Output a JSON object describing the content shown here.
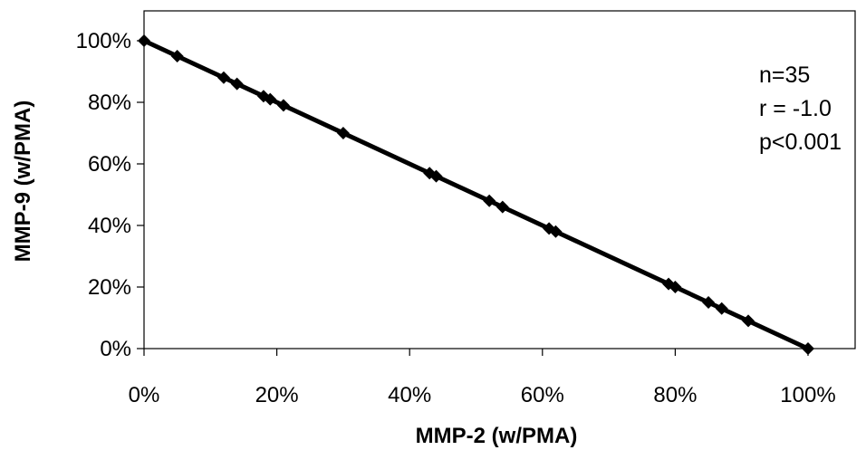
{
  "chart_data": {
    "type": "scatter",
    "xlabel": "MMP-2 (w/PMA)",
    "ylabel": "MMP-9 (w/PMA)",
    "xlim": [
      0,
      100
    ],
    "ylim": [
      0,
      100
    ],
    "x_ticks": [
      0,
      20,
      40,
      60,
      80,
      100
    ],
    "y_ticks": [
      0,
      20,
      40,
      60,
      80,
      100
    ],
    "x_tick_labels": [
      "0%",
      "20%",
      "40%",
      "60%",
      "80%",
      "100%"
    ],
    "y_tick_labels": [
      "0%",
      "20%",
      "40%",
      "60%",
      "80%",
      "100%"
    ],
    "grid": false,
    "series": [
      {
        "points": [
          [
            0,
            100
          ],
          [
            5,
            95
          ],
          [
            12,
            88
          ],
          [
            14,
            86
          ],
          [
            18,
            82
          ],
          [
            19,
            81
          ],
          [
            21,
            79
          ],
          [
            30,
            70
          ],
          [
            43,
            57
          ],
          [
            44,
            56
          ],
          [
            52,
            48
          ],
          [
            54,
            46
          ],
          [
            61,
            39
          ],
          [
            62,
            38
          ],
          [
            79,
            21
          ],
          [
            80,
            20
          ],
          [
            85,
            15
          ],
          [
            87,
            13
          ],
          [
            91,
            9
          ],
          [
            100,
            0
          ]
        ],
        "marker": "diamond",
        "color": "#000000"
      }
    ],
    "trendline": {
      "from": [
        0,
        100
      ],
      "to": [
        100,
        0
      ]
    },
    "annotations": [
      "n=35",
      "r = -1.0",
      "p<0.001"
    ]
  }
}
